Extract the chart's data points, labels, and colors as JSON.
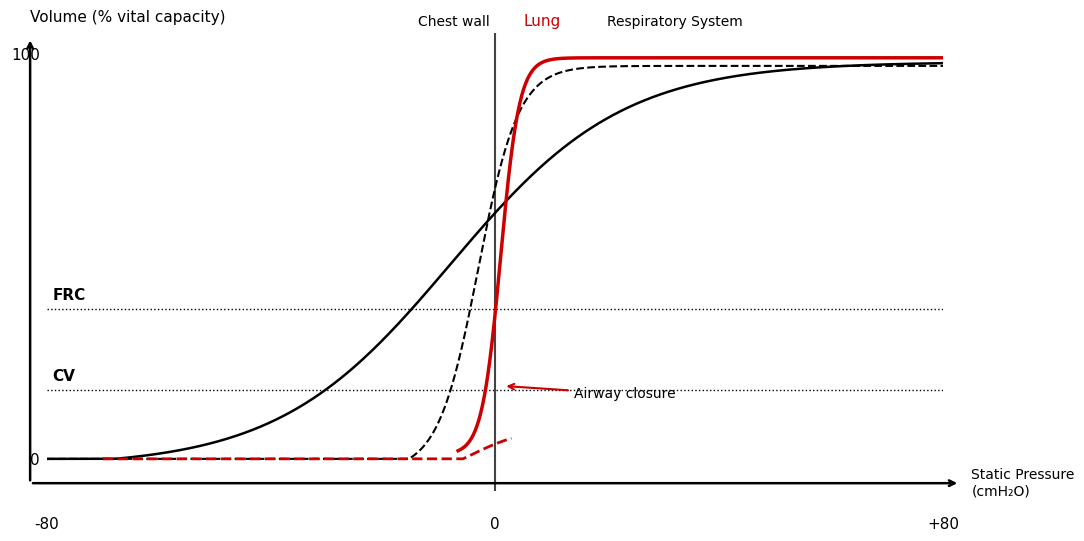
{
  "xlim": [
    -80,
    80
  ],
  "ylim_min": -8,
  "ylim_max": 105,
  "xticks": [
    -80,
    0,
    80
  ],
  "xticklabels": [
    "-80",
    "0",
    "+80"
  ],
  "yticks": [
    0,
    100
  ],
  "yticklabels": [
    "0",
    "100"
  ],
  "ylabel": "Volume (% vital capacity)",
  "xlabel_line1": "Static Pressure",
  "xlabel_line2": "(cmH₂O)",
  "frc_level": 37,
  "cv_level": 17,
  "chest_wall_label": "Chest wall",
  "lung_label": "Lung",
  "resp_system_label": "Respiratory System",
  "airway_closure_label": "Airway closure",
  "bg_color": "#ffffff",
  "black": "#000000",
  "red": "#cc0000",
  "gray": "#444444"
}
